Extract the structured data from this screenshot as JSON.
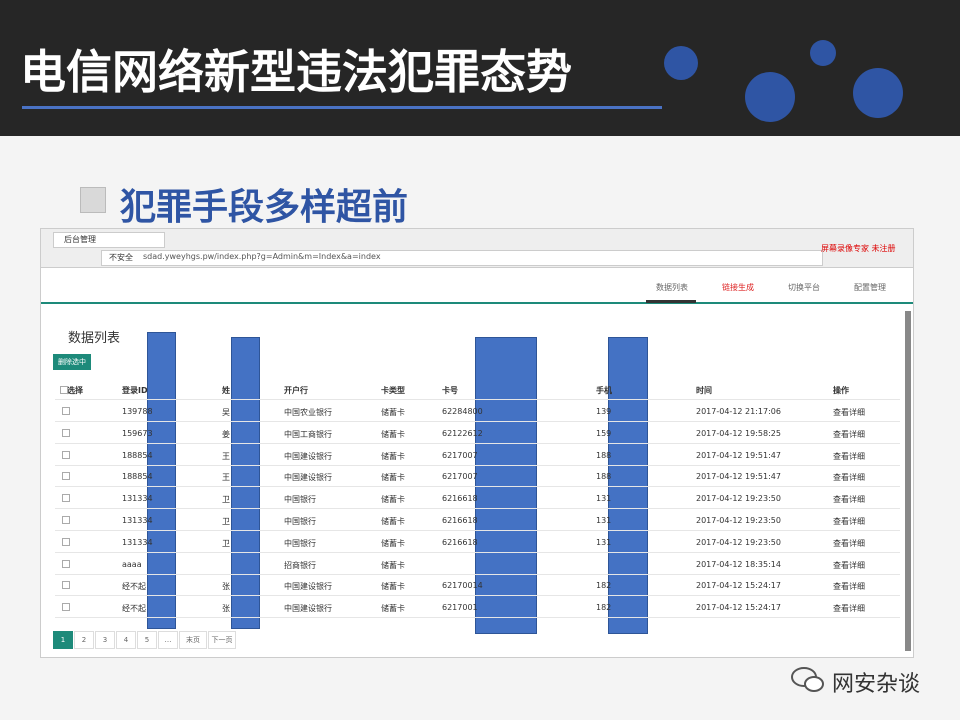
{
  "slide": {
    "title": "电信网络新型违法犯罪态势",
    "subtitle": "犯罪手段多样超前"
  },
  "browser": {
    "tab": "后台管理",
    "security": "不安全",
    "url": "sdad.yweyhgs.pw/index.php?g=Admin&m=Index&a=index",
    "extension": "屏幕录像专家 未注册"
  },
  "nav": [
    "数据列表",
    "链接生成",
    "切换平台",
    "配置管理"
  ],
  "page": {
    "heading": "数据列表",
    "button": "删除选中"
  },
  "table": {
    "headers": [
      "选择",
      "登录ID",
      "姓",
      "开户行",
      "卡类型",
      "卡号",
      "手机",
      "时间",
      "操作"
    ],
    "rows": [
      [
        "139788",
        "吴",
        "中国农业银行",
        "储蓄卡",
        "62284800",
        "139",
        "2017-04-12 21:17:06",
        "查看详细"
      ],
      [
        "159673",
        "姜",
        "中国工商银行",
        "储蓄卡",
        "62122612",
        "159",
        "2017-04-12 19:58:25",
        "查看详细"
      ],
      [
        "188854",
        "王",
        "中国建设银行",
        "储蓄卡",
        "6217007",
        "188",
        "2017-04-12 19:51:47",
        "查看详细"
      ],
      [
        "188854",
        "王",
        "中国建设银行",
        "储蓄卡",
        "6217007",
        "188",
        "2017-04-12 19:51:47",
        "查看详细"
      ],
      [
        "131334",
        "卫",
        "中国银行",
        "储蓄卡",
        "6216618",
        "131",
        "2017-04-12 19:23:50",
        "查看详细"
      ],
      [
        "131334",
        "卫",
        "中国银行",
        "储蓄卡",
        "6216618",
        "131",
        "2017-04-12 19:23:50",
        "查看详细"
      ],
      [
        "131334",
        "卫",
        "中国银行",
        "储蓄卡",
        "6216618",
        "131",
        "2017-04-12 19:23:50",
        "查看详细"
      ],
      [
        "aaaa",
        null,
        "招商银行",
        "储蓄卡",
        null,
        null,
        "2017-04-12 18:35:14",
        "查看详细"
      ],
      [
        "经不起",
        "张",
        "中国建设银行",
        "储蓄卡",
        "62170014",
        "182",
        "2017-04-12 15:24:17",
        "查看详细"
      ],
      [
        "经不起",
        "张",
        "中国建设银行",
        "储蓄卡",
        "6217001",
        "182",
        "2017-04-12 15:24:17",
        "查看详细"
      ]
    ]
  },
  "pagination": [
    "1",
    "2",
    "3",
    "4",
    "5",
    "…",
    "末页",
    "下一页"
  ],
  "watermark": "网安杂谈"
}
